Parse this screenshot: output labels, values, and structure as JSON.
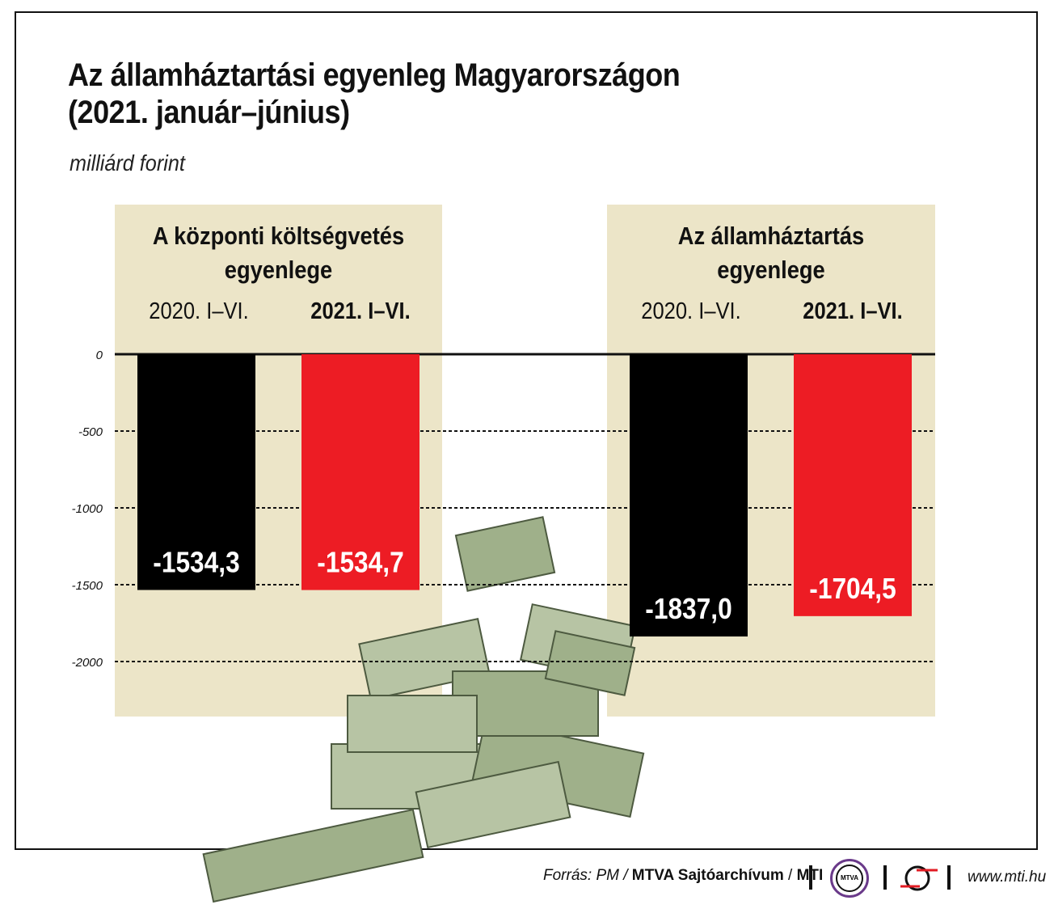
{
  "title_line1": "Az államháztartási egyenleg Magyarországon",
  "title_line2": "(2021. január–június)",
  "unit": "milliárd forint",
  "panels": [
    {
      "title_line1": "A központi költségvetés",
      "title_line2": "egyenlege",
      "label_2020": "2020. I–VI.",
      "label_2021": "2021. I–VI."
    },
    {
      "title_line1": "Az államháztartás",
      "title_line2": "egyenlege",
      "label_2020": "2020. I–VI.",
      "label_2021": "2021. I–VI."
    }
  ],
  "chart_data": {
    "type": "bar",
    "title": "Az államháztartási egyenleg Magyarországon (2021. január–június)",
    "ylabel": "milliárd forint",
    "ylim": [
      -2000,
      0
    ],
    "yticks": [
      "0",
      "-500",
      "-1000",
      "-1500",
      "-2000"
    ],
    "ytick_values": [
      0,
      -500,
      -1000,
      -1500,
      -2000
    ],
    "groups": [
      "A központi költségvetés egyenlege",
      "Az államháztartás egyenlege"
    ],
    "categories": [
      "2020. I–VI.",
      "2021. I–VI."
    ],
    "series": [
      {
        "name": "2020. I–VI.",
        "color": "#000000",
        "values": [
          -1534.3,
          -1837.0
        ],
        "labels": [
          "-1534,3",
          "-1837,0"
        ]
      },
      {
        "name": "2021. I–VI.",
        "color": "#ed1c24",
        "values": [
          -1534.7,
          -1704.5
        ],
        "labels": [
          "-1534,7",
          "-1704,5"
        ]
      }
    ]
  },
  "footer": {
    "source_prefix": "Forrás: PM /",
    "source_bold": "MTVA Sajtóarchívum",
    "source_sep": "/",
    "source_mti": "MTI",
    "logo_text": "MTVA",
    "url": "www.mti.hu"
  }
}
